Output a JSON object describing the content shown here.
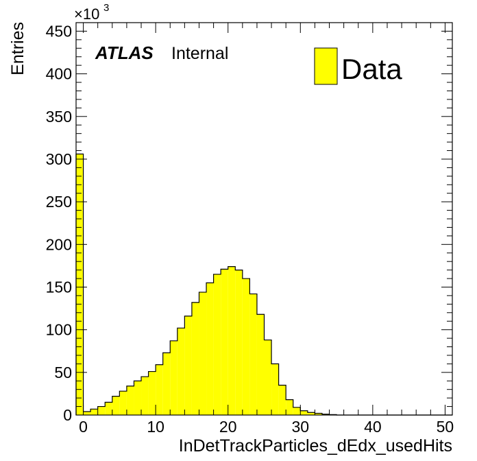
{
  "chart_data": {
    "type": "bar",
    "histogram": true,
    "xlabel": "InDetTrackParticles_dEdx_usedHits",
    "ylabel": "Entries",
    "y_multiplier_label": "×10",
    "y_multiplier_exponent": "3",
    "xlim": [
      -1,
      51
    ],
    "ylim": [
      0,
      460
    ],
    "y_unit_factor": 1000,
    "x_ticks": [
      0,
      10,
      20,
      30,
      40,
      50
    ],
    "x_tick_labels": [
      "0",
      "10",
      "20",
      "30",
      "40",
      "50"
    ],
    "y_ticks": [
      0,
      50,
      100,
      150,
      200,
      250,
      300,
      350,
      400,
      450
    ],
    "y_tick_labels": [
      "0",
      "50",
      "100",
      "150",
      "200",
      "250",
      "300",
      "350",
      "400",
      "450"
    ],
    "grid": false,
    "legend_position": "top-right",
    "experiment_label": "ATLAS",
    "experiment_sublabel": "Internal",
    "bin_edges": [
      -1,
      0,
      1,
      2,
      3,
      4,
      5,
      6,
      7,
      8,
      9,
      10,
      11,
      12,
      13,
      14,
      15,
      16,
      17,
      18,
      19,
      20,
      21,
      22,
      23,
      24,
      25,
      26,
      27,
      28,
      29,
      30,
      31,
      32,
      33,
      34,
      35,
      36,
      37,
      38,
      39,
      40,
      41,
      42,
      43,
      44,
      45,
      46,
      47,
      48,
      49,
      50,
      51
    ],
    "series": [
      {
        "name": "Data",
        "color": "#ffff00",
        "edge_color": "#000000",
        "values": [
          306,
          4,
          7,
          10,
          15,
          22,
          28,
          34,
          40,
          45,
          51,
          59,
          73,
          87,
          102,
          116,
          132,
          144,
          155,
          165,
          171,
          174,
          170,
          160,
          142,
          118,
          88,
          60,
          35,
          18,
          9,
          5,
          3,
          2,
          1,
          0.5,
          0,
          0,
          0,
          0,
          0,
          0,
          0,
          0,
          0,
          0,
          0,
          0,
          0,
          0,
          0,
          0
        ]
      }
    ]
  },
  "colors": {
    "fill": "#ffff00",
    "stroke": "#000000",
    "background": "#ffffff"
  }
}
